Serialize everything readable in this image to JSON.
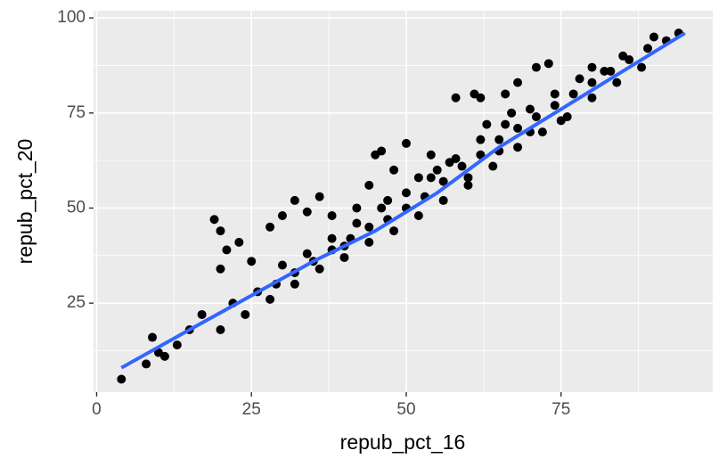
{
  "chart_data": {
    "type": "scatter",
    "x_label": "repub_pct_16",
    "y_label": "repub_pct_20",
    "xlim": [
      -0.5,
      99.5
    ],
    "ylim": [
      1.6,
      101.9
    ],
    "xticks": [
      0,
      25,
      50,
      75
    ],
    "yticks": [
      25,
      50,
      75,
      100
    ],
    "minor_xticks": [
      12.5,
      37.5,
      62.5,
      87.5
    ],
    "minor_yticks": [
      12.5,
      37.5,
      62.5,
      87.5
    ],
    "grid": true,
    "series": [
      {
        "color": "#000000",
        "x": [
          4,
          8,
          9,
          10,
          11,
          13,
          15,
          17,
          20,
          19,
          20,
          21,
          20,
          23,
          25,
          28,
          30,
          32,
          34,
          36,
          38,
          42,
          44,
          46,
          45,
          50,
          48,
          54,
          58,
          61,
          62,
          66,
          68,
          71,
          73,
          80,
          85,
          90,
          94,
          22,
          26,
          29,
          32,
          35,
          38,
          41,
          44,
          47,
          50,
          53,
          56,
          59,
          62,
          65,
          68,
          71,
          74,
          77,
          80,
          83,
          86,
          89,
          92,
          24,
          28,
          32,
          36,
          40,
          44,
          48,
          52,
          56,
          60,
          64,
          68,
          72,
          76,
          80,
          84,
          88,
          30,
          34,
          38,
          42,
          46,
          50,
          54,
          58,
          62,
          66,
          70,
          74,
          78,
          82,
          55,
          60,
          65,
          70,
          75,
          40,
          47,
          52,
          57,
          63,
          67
        ],
        "values": [
          5,
          9,
          16,
          12,
          11,
          14,
          18,
          22,
          18,
          47,
          44,
          39,
          34,
          41,
          36,
          45,
          48,
          52,
          49,
          53,
          48,
          50,
          56,
          65,
          64,
          67,
          60,
          64,
          79,
          80,
          79,
          80,
          83,
          87,
          88,
          87,
          90,
          95,
          96,
          25,
          28,
          30,
          33,
          36,
          39,
          42,
          45,
          47,
          50,
          53,
          57,
          61,
          64,
          68,
          71,
          74,
          77,
          80,
          83,
          86,
          89,
          92,
          94,
          22,
          26,
          30,
          34,
          37,
          41,
          44,
          48,
          52,
          56,
          61,
          66,
          70,
          74,
          79,
          83,
          87,
          35,
          38,
          42,
          46,
          50,
          54,
          58,
          63,
          68,
          72,
          76,
          80,
          84,
          86,
          60,
          58,
          65,
          70,
          73,
          40,
          52,
          58,
          62,
          72,
          75
        ]
      }
    ],
    "smooth": {
      "color": "#3366ff",
      "x": [
        4,
        15,
        25,
        35,
        45,
        55,
        65,
        75,
        85,
        95
      ],
      "values": [
        8,
        18,
        27,
        36,
        44,
        54,
        66,
        76,
        86,
        96
      ]
    }
  }
}
